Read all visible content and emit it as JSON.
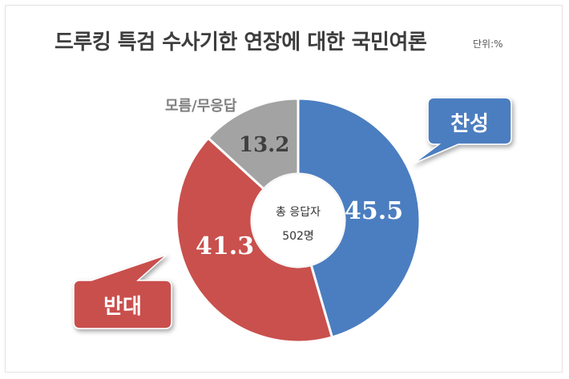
{
  "title": "드루킹 특검 수사기한 연장에 대한 국민여론",
  "unit": "단위:%",
  "center": {
    "line1": "총 응답자",
    "line2": "502명"
  },
  "chart_data": {
    "type": "pie",
    "title": "드루킹 특검 수사기한 연장에 대한 국민여론",
    "unit": "단위:%",
    "categories": [
      "찬성",
      "반대",
      "모름/무응답"
    ],
    "values": [
      45.5,
      41.3,
      13.2
    ],
    "value_labels": [
      "45.5",
      "41.3",
      "13.2"
    ],
    "colors": [
      "#4b7ec0",
      "#c9504d",
      "#a3a3a3"
    ],
    "center_text": [
      "총 응답자",
      "502명"
    ]
  }
}
